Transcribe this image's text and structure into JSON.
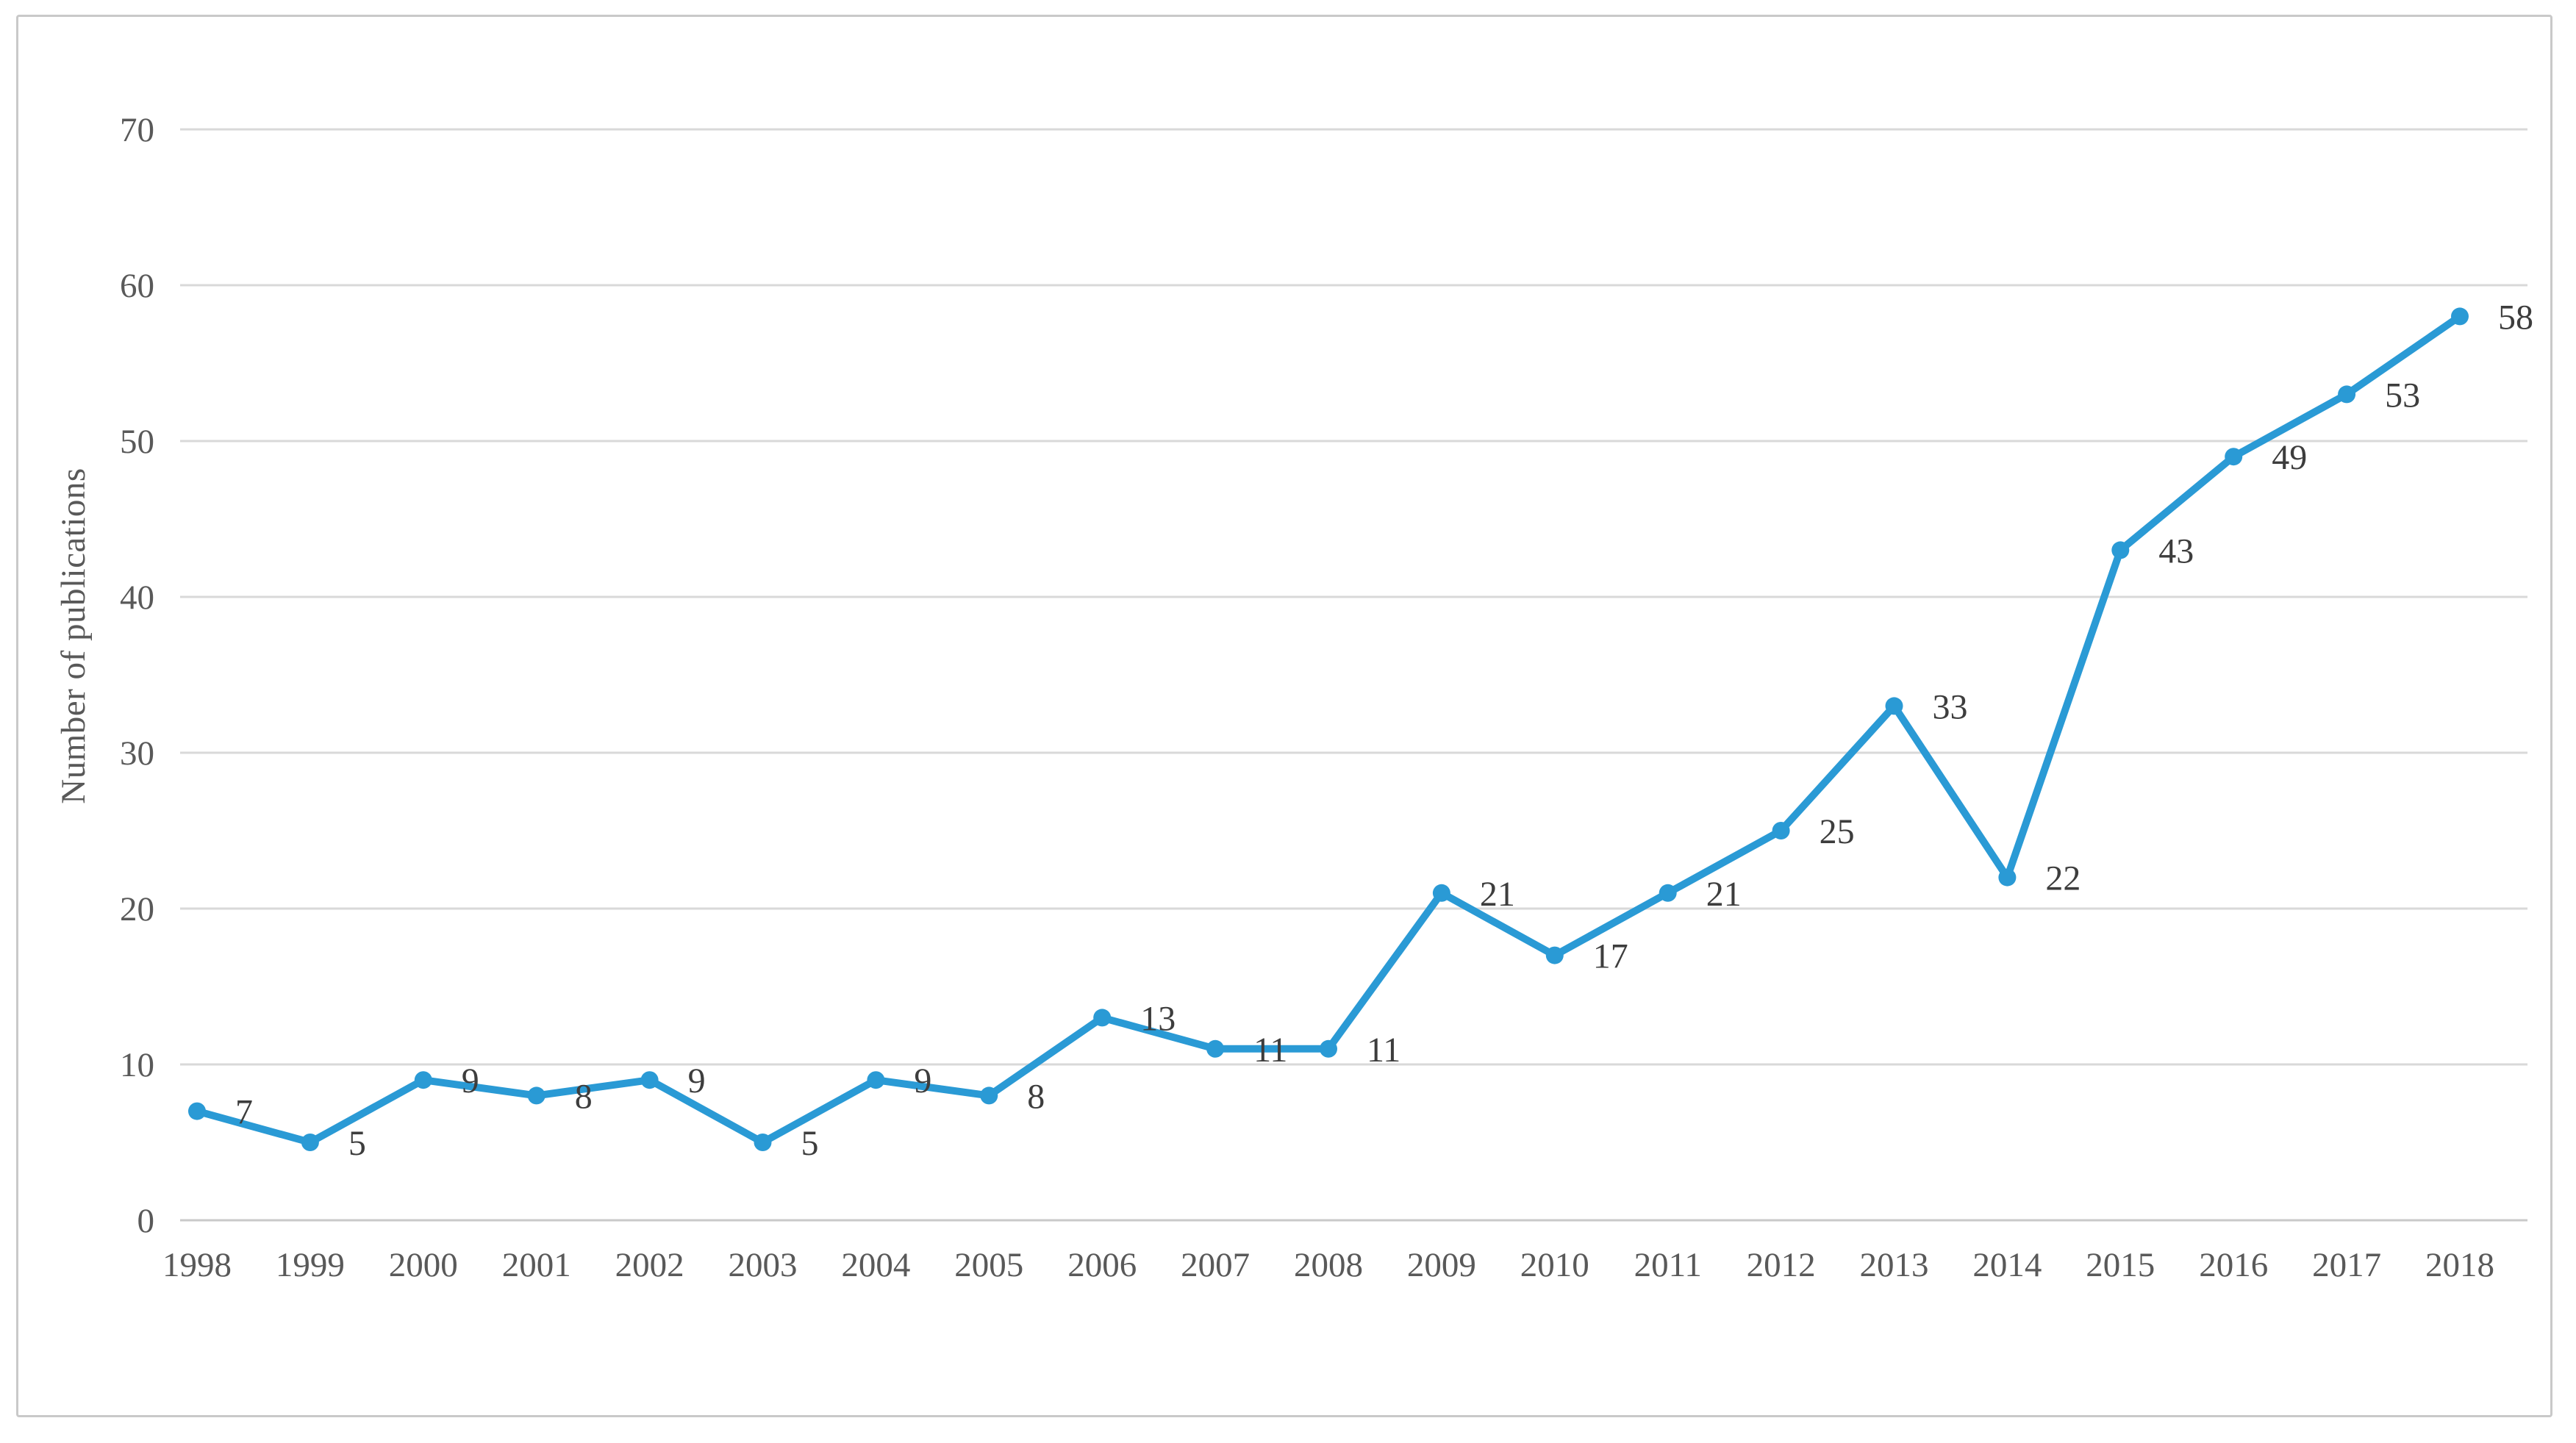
{
  "chart_data": {
    "type": "line",
    "title": "",
    "xlabel": "",
    "ylabel": "Number of publications",
    "categories": [
      "1998",
      "1999",
      "2000",
      "2001",
      "2002",
      "2003",
      "2004",
      "2005",
      "2006",
      "2007",
      "2008",
      "2009",
      "2010",
      "2011",
      "2012",
      "2013",
      "2014",
      "2015",
      "2016",
      "2017",
      "2018"
    ],
    "series": [
      {
        "name": "Number of publications",
        "values": [
          7,
          5,
          9,
          8,
          9,
          5,
          9,
          8,
          13,
          11,
          11,
          21,
          17,
          21,
          25,
          33,
          22,
          43,
          49,
          53,
          58
        ]
      }
    ],
    "data_labels": [
      7,
      5,
      9,
      8,
      9,
      5,
      9,
      8,
      13,
      11,
      11,
      21,
      17,
      21,
      25,
      33,
      22,
      43,
      49,
      53,
      58
    ],
    "ylim": [
      0,
      70
    ],
    "yticks": [
      0,
      10,
      20,
      30,
      40,
      50,
      60,
      70
    ],
    "grid": "horizontal",
    "legend": "none",
    "colors": {
      "line": "#2a9ad5",
      "marker": "#2a9ad5",
      "data_label": "#3d3d3d",
      "axis_text": "#595959",
      "gridline": "#d9d9d9",
      "baseline": "#c9c9c9",
      "frame_border": "#c9c9c9",
      "background": "#ffffff"
    }
  }
}
